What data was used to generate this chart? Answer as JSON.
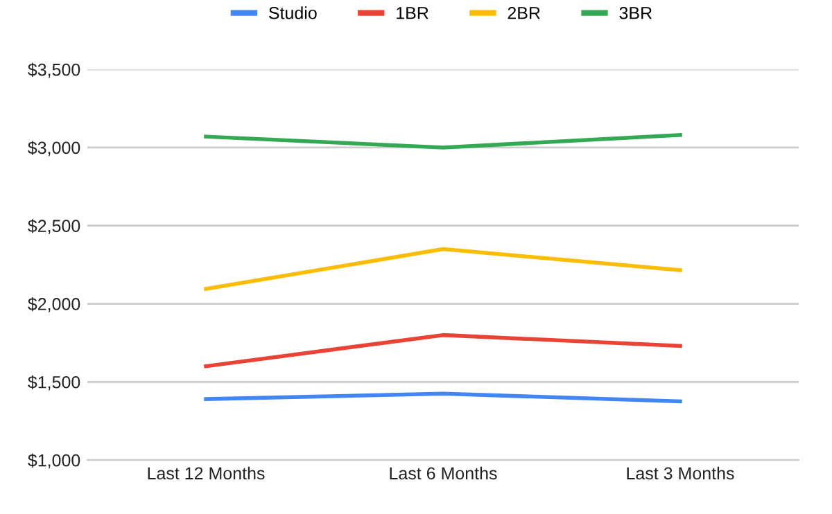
{
  "chart_data": {
    "type": "line",
    "categories": [
      "Last 12 Months",
      "Last 6 Months",
      "Last 3 Months"
    ],
    "series": [
      {
        "name": "Studio",
        "color": "#4285f4",
        "values": [
          1390,
          1425,
          1375
        ]
      },
      {
        "name": "1BR",
        "color": "#ea4335",
        "values": [
          1600,
          1800,
          1730
        ]
      },
      {
        "name": "2BR",
        "color": "#fbbc04",
        "values": [
          2095,
          2350,
          2215
        ]
      },
      {
        "name": "3BR",
        "color": "#34a853",
        "values": [
          3070,
          3000,
          3080
        ]
      }
    ],
    "ylim": [
      1000,
      3500
    ],
    "yticks": [
      {
        "value": 1000,
        "label": "$1,000"
      },
      {
        "value": 1500,
        "label": "$1,500"
      },
      {
        "value": 2000,
        "label": "$2,000"
      },
      {
        "value": 2500,
        "label": "$2,500"
      },
      {
        "value": 3000,
        "label": "$3,000"
      },
      {
        "value": 3500,
        "label": "$3,500"
      }
    ],
    "grid": "y",
    "legend": "top",
    "marker": "none",
    "line_style": "solid"
  }
}
